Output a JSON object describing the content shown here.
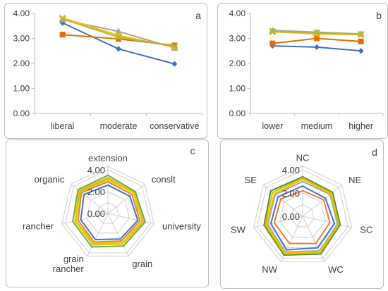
{
  "chart_data": [
    {
      "type": "line",
      "panel_label": "a",
      "categories": [
        "liberal",
        "moderate",
        "conservative"
      ],
      "ylim": [
        0,
        4
      ],
      "yticks": [
        "0.00",
        "1.00",
        "2.00",
        "3.00",
        "4.00"
      ],
      "grid": false,
      "legend": "none",
      "series": [
        {
          "color": "#3f6fc4",
          "marker": "diamond",
          "values": [
            3.62,
            2.58,
            1.98
          ]
        },
        {
          "color": "#e46c0a",
          "marker": "square",
          "values": [
            3.15,
            2.98,
            2.72
          ]
        },
        {
          "color": "#a5a5a5",
          "marker": "triangle",
          "values": [
            3.75,
            3.28,
            2.62
          ]
        },
        {
          "color": "#ffc000",
          "marker": "x",
          "values": [
            3.82,
            3.12,
            2.65
          ]
        },
        {
          "color": "#b5b53a",
          "marker": "x",
          "values": [
            3.78,
            3.05,
            2.68
          ]
        }
      ]
    },
    {
      "type": "line",
      "panel_label": "b",
      "categories": [
        "lower",
        "medium",
        "higher"
      ],
      "ylim": [
        0,
        4
      ],
      "yticks": [
        "0.00",
        "1.00",
        "2.00",
        "3.00",
        "4.00"
      ],
      "grid": false,
      "legend": "none",
      "series": [
        {
          "color": "#3f6fc4",
          "marker": "diamond",
          "values": [
            2.7,
            2.65,
            2.5
          ]
        },
        {
          "color": "#e46c0a",
          "marker": "square",
          "values": [
            2.8,
            3.0,
            2.88
          ]
        },
        {
          "color": "#a5a5a5",
          "marker": "triangle",
          "values": [
            3.32,
            3.25,
            3.18
          ]
        },
        {
          "color": "#ffc000",
          "marker": "x",
          "values": [
            3.26,
            3.18,
            3.15
          ]
        },
        {
          "color": "#b5b53a",
          "marker": "x",
          "values": [
            3.28,
            3.22,
            3.17
          ]
        }
      ]
    },
    {
      "type": "radar",
      "panel_label": "c",
      "categories": [
        "extension",
        "conslt",
        "university",
        "grain",
        "grain rancher",
        "rancher",
        "organic"
      ],
      "category_display": [
        "extension",
        "conslt",
        "university",
        "grain",
        "grain\nrancher",
        "rancher",
        "organic"
      ],
      "rlim": [
        0,
        4
      ],
      "rticks": [
        "0.00",
        "2.00",
        "4.00"
      ],
      "series": [
        {
          "color": "#4472c4",
          "values": [
            2.6,
            2.55,
            2.8,
            2.6,
            2.65,
            2.55,
            2.8
          ]
        },
        {
          "color": "#ed7d31",
          "values": [
            2.9,
            2.8,
            3.0,
            2.8,
            2.9,
            2.8,
            3.1
          ]
        },
        {
          "color": "#a5a5a5",
          "values": [
            3.2,
            3.0,
            3.3,
            3.0,
            3.1,
            3.0,
            3.3
          ]
        },
        {
          "color": "#ffc000",
          "values": [
            3.3,
            3.1,
            3.4,
            3.1,
            3.2,
            3.1,
            3.4
          ]
        },
        {
          "color": "#70ad47",
          "values": [
            3.5,
            3.2,
            3.5,
            3.3,
            3.4,
            3.3,
            3.5
          ]
        },
        {
          "color": "#d4d400",
          "values": [
            3.1,
            3.0,
            3.2,
            3.0,
            3.0,
            3.0,
            3.2
          ]
        }
      ]
    },
    {
      "type": "radar",
      "panel_label": "d",
      "categories": [
        "NC",
        "NE",
        "SC",
        "WC",
        "NW",
        "SW",
        "SE"
      ],
      "rlim": [
        0,
        4
      ],
      "rticks": [
        "0.00",
        "2.00",
        "4.00"
      ],
      "series": [
        {
          "color": "#4472c4",
          "values": [
            2.6,
            2.5,
            2.8,
            3.0,
            3.2,
            2.8,
            2.7
          ]
        },
        {
          "color": "#ed7d31",
          "values": [
            2.2,
            2.3,
            2.4,
            2.6,
            2.6,
            2.5,
            2.4
          ]
        },
        {
          "color": "#a5a5a5",
          "values": [
            3.0,
            3.0,
            3.1,
            3.3,
            3.4,
            3.1,
            3.0
          ]
        },
        {
          "color": "#ffc000",
          "values": [
            3.2,
            3.1,
            3.2,
            3.4,
            3.5,
            3.2,
            3.1
          ]
        },
        {
          "color": "#548235",
          "values": [
            3.4,
            3.3,
            3.3,
            3.6,
            3.7,
            3.4,
            3.5
          ]
        },
        {
          "color": "#c9c900",
          "values": [
            3.3,
            3.2,
            3.2,
            3.5,
            3.6,
            3.3,
            3.3
          ]
        }
      ]
    }
  ]
}
